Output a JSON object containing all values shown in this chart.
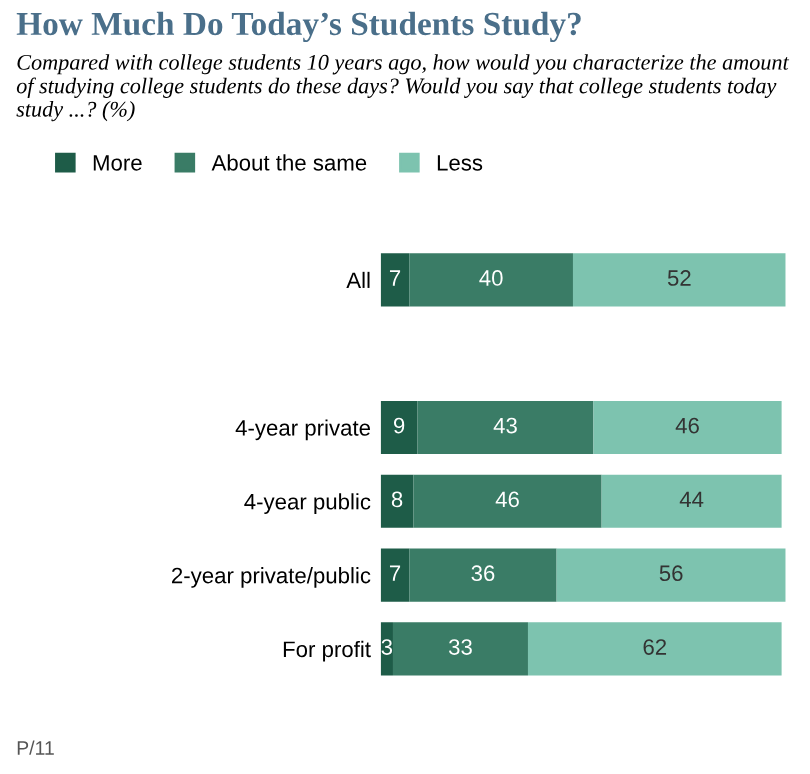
{
  "chart_data": {
    "type": "bar",
    "orientation": "horizontal",
    "stacked": true,
    "title": "How Much Do Today’s Students Study?",
    "subtitle": "Compared with college students 10 years ago, how would you characterize the amount of studying college students do these days? Would you say that college students today study ...? (%)",
    "categories": [
      "All",
      null,
      "4-year private",
      "4-year public",
      "2-year private/public",
      "For profit"
    ],
    "series": [
      {
        "name": "More",
        "color": "#1e5c48",
        "values": [
          7,
          null,
          9,
          8,
          7,
          3
        ]
      },
      {
        "name": "About the same",
        "color": "#3a7c66",
        "values": [
          40,
          null,
          43,
          46,
          36,
          33
        ]
      },
      {
        "name": "Less",
        "color": "#7dc3af",
        "values": [
          52,
          null,
          46,
          44,
          56,
          62
        ]
      }
    ],
    "data_labels": true,
    "legend": "top",
    "tick_labels": "y",
    "grid": false,
    "annotations": [
      "P/11"
    ]
  }
}
